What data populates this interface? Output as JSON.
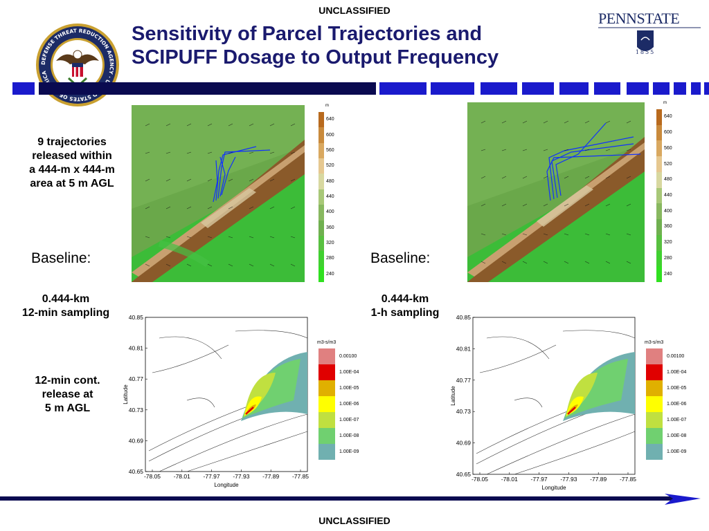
{
  "header": {
    "classification_top": "UNCLASSIFIED",
    "title_line1": "Sensitivity of Parcel Trajectories and",
    "title_line2": "SCIPUFF Dosage to Output Frequency",
    "seal_text": "DEFENSE THREAT REDUCTION AGENCY · UNITED STATES OF AMERICA",
    "psu_name": "PENNSTATE",
    "psu_year": "1855"
  },
  "left_labels": {
    "trajectories": [
      "9 trajectories",
      "released within",
      "a 444-m x 444-m",
      "area at 5 m AGL"
    ],
    "baseline": "Baseline:",
    "sampling_a": "0.444-km",
    "sampling_b": "12-min sampling",
    "release": [
      "12-min cont.",
      "release at",
      "5 m AGL"
    ]
  },
  "right_labels": {
    "baseline": "Baseline:",
    "sampling_a": "0.444-km",
    "sampling_b": "1-h sampling"
  },
  "terrain_legend": {
    "unit": "m",
    "values": [
      "640",
      "600",
      "560",
      "520",
      "480",
      "440",
      "400",
      "360",
      "320",
      "280",
      "240"
    ],
    "colors": [
      "#b86a1e",
      "#c98a3c",
      "#d9a860",
      "#e6c890",
      "#d8d8a0",
      "#a8c878",
      "#88b860",
      "#70b050",
      "#58c040",
      "#40d030",
      "#30e020"
    ]
  },
  "dosage_legend": {
    "unit": "m3-s/m3",
    "values": [
      "0.00100",
      "1.00E-04",
      "1.00E-05",
      "1.00E-06",
      "1.00E-07",
      "1.00E-08",
      "1.00E-09"
    ],
    "colors": [
      "#e08080",
      "#e00000",
      "#e0b000",
      "#ffff00",
      "#c0e040",
      "#70d070",
      "#70b0b0"
    ]
  },
  "dosage_axes": {
    "y_ticks": [
      "40.85",
      "40.81",
      "40.77",
      "40.73",
      "40.69",
      "40.65"
    ],
    "x_ticks": [
      "-78.05",
      "-78.01",
      "-77.97",
      "-77.93",
      "-77.89",
      "-77.85"
    ],
    "ylabel": "Latitude",
    "xlabel": "Longitude"
  },
  "footer": {
    "classification_bottom": "UNCLASSIFIED"
  },
  "colors": {
    "title": "#1a1a6e",
    "bar_blue": "#1a1acc",
    "bar_dark": "#0a0a50",
    "traj_blue": "#1030ff"
  }
}
